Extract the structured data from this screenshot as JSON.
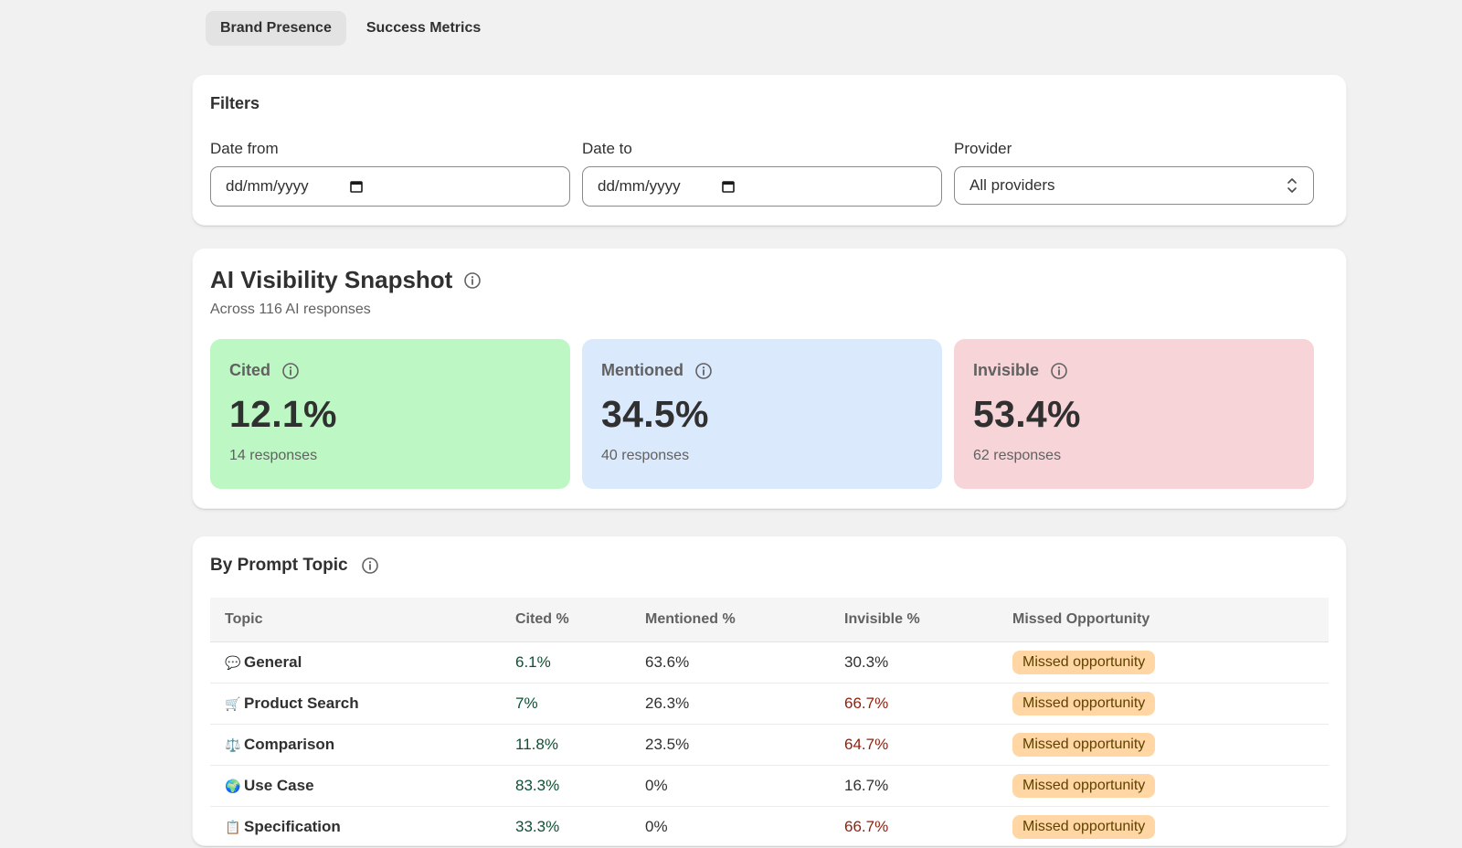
{
  "tabs": [
    {
      "label": "Brand Presence",
      "active": true
    },
    {
      "label": "Success Metrics",
      "active": false
    }
  ],
  "filters": {
    "title": "Filters",
    "date_from": {
      "label": "Date from",
      "value": "dd/mm/yyyy"
    },
    "date_to": {
      "label": "Date to",
      "value": "dd/mm/yyyy"
    },
    "provider": {
      "label": "Provider",
      "value": "All providers"
    }
  },
  "snapshot": {
    "title": "AI Visibility Snapshot",
    "subtitle": "Across 116 AI responses",
    "stats": [
      {
        "label": "Cited",
        "value": "12.1%",
        "count": "14 responses",
        "color": "#bdf8c4"
      },
      {
        "label": "Mentioned",
        "value": "34.5%",
        "count": "40 responses",
        "color": "#dbe9fd"
      },
      {
        "label": "Invisible",
        "value": "53.4%",
        "count": "62 responses",
        "color": "#f7d4d8"
      }
    ]
  },
  "topics": {
    "title": "By Prompt Topic",
    "columns": [
      "Topic",
      "Cited %",
      "Mentioned %",
      "Invisible %",
      "Missed Opportunity"
    ],
    "rows": [
      {
        "emoji": "💬",
        "topic": "General",
        "cited": "6.1%",
        "mentioned": "63.6%",
        "invisible": "30.3%",
        "missed": "Missed opportunity"
      },
      {
        "emoji": "🛒",
        "topic": "Product Search",
        "cited": "7%",
        "mentioned": "26.3%",
        "invisible": "66.7%",
        "missed": "Missed opportunity"
      },
      {
        "emoji": "⚖️",
        "topic": "Comparison",
        "cited": "11.8%",
        "mentioned": "23.5%",
        "invisible": "64.7%",
        "missed": "Missed opportunity"
      },
      {
        "emoji": "🌍",
        "topic": "Use Case",
        "cited": "83.3%",
        "mentioned": "0%",
        "invisible": "16.7%",
        "missed": "Missed opportunity"
      },
      {
        "emoji": "📋",
        "topic": "Specification",
        "cited": "33.3%",
        "mentioned": "0%",
        "invisible": "66.7%",
        "missed": "Missed opportunity"
      }
    ]
  },
  "colors": {
    "cited_text": "#0c5132",
    "invisible_text": "#8e1f0b",
    "badge_bg": "#ffd6a4",
    "page_bg": "#f1f1f1"
  }
}
